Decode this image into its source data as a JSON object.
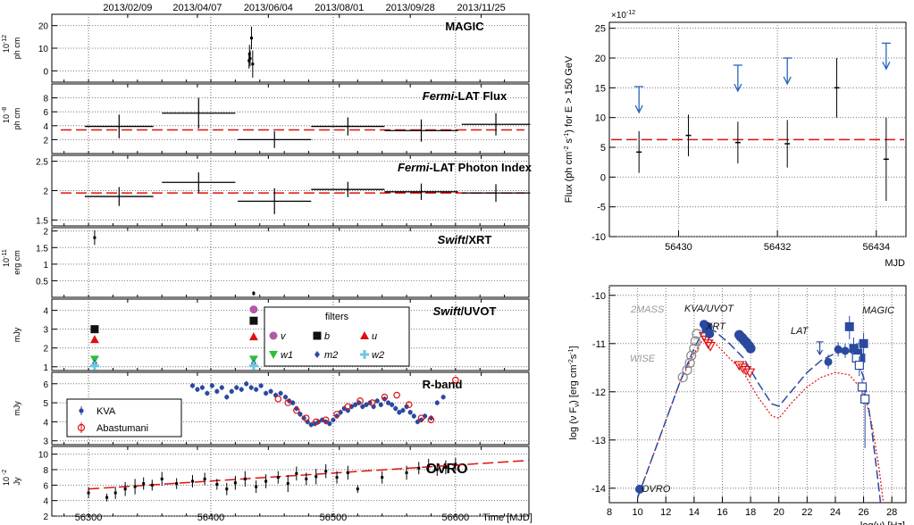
{
  "chart_data": [
    {
      "type": "multi-panel light curve",
      "top_dates": [
        "2013/02/09",
        "2013/04/07",
        "2013/06/04",
        "2013/08/01",
        "2013/09/28",
        "2013/11/25"
      ],
      "top_date_mjd": [
        56332,
        56389,
        56447,
        56505,
        56563,
        56621
      ],
      "x_range": [
        56270,
        56660
      ],
      "x_ticks": [
        56300,
        56400,
        56500,
        56600
      ],
      "xlabel": "Time [MJD]",
      "panels": [
        {
          "id": "magic",
          "title": "MAGIC",
          "ylabel_exp": "10",
          "ylabel_pow": "-12",
          "ylabel": "ph cm",
          "ylim": [
            -5,
            25
          ],
          "ticks": [
            0,
            10,
            20
          ],
          "tick_labels": [
            "0",
            "10",
            "20"
          ],
          "series": [
            {
              "type": "points",
              "color": "#000000",
              "x": [
                56431.2,
                56431.6,
                56432.1,
                56433.2,
                56434.2
              ],
              "y": [
                4.5,
                7.5,
                5.5,
                14.5,
                3.0
              ],
              "err": [
                3.5,
                4,
                3.5,
                5,
                6
              ]
            }
          ]
        },
        {
          "id": "lat_flux",
          "title": "-LAT Flux",
          "title_ital": "Fermi",
          "ylabel_exp": "10",
          "ylabel_pow": "-8",
          "ylabel": "ph cm",
          "ylim": [
            0,
            10
          ],
          "ticks": [
            2,
            4,
            6,
            8
          ],
          "tick_labels": [
            "2",
            "4",
            "6",
            "8"
          ],
          "hline": 3.4,
          "series": [
            {
              "type": "bins",
              "color": "#000000",
              "x": [
                56325,
                56390,
                56452,
                56512,
                56572,
                56633
              ],
              "xerr": [
                28,
                30,
                30,
                30,
                30,
                28
              ],
              "y": [
                3.9,
                5.8,
                2.0,
                3.9,
                3.3,
                4.2
              ],
              "err": [
                1.7,
                2.2,
                1.2,
                1.3,
                1.6,
                1.6
              ]
            }
          ]
        },
        {
          "id": "lat_index",
          "title": "-LAT Photon Index",
          "title_ital": "Fermi",
          "ylabel": "",
          "ylim": [
            1.4,
            2.6
          ],
          "ticks": [
            1.5,
            2,
            2.5
          ],
          "tick_labels": [
            "1.5",
            "2",
            "2.5"
          ],
          "hline": 1.96,
          "series": [
            {
              "type": "bins",
              "color": "#000000",
              "x": [
                56325,
                56390,
                56452,
                56512,
                56572,
                56633
              ],
              "xerr": [
                28,
                30,
                30,
                30,
                30,
                28
              ],
              "y": [
                1.9,
                2.14,
                1.82,
                2.02,
                1.98,
                1.96
              ],
              "err": [
                0.16,
                0.17,
                0.22,
                0.13,
                0.14,
                0.15
              ]
            }
          ]
        },
        {
          "id": "xrt",
          "title": "/XRT",
          "title_ital": "Swift",
          "ylabel_exp": "10",
          "ylabel_pow": "-11",
          "ylabel": "erg cm",
          "ylim": [
            0,
            2.1
          ],
          "ticks": [
            0.5,
            1,
            1.5,
            2
          ],
          "tick_labels": [
            "0.5",
            "1",
            "1.5",
            "2"
          ],
          "series": [
            {
              "type": "points",
              "color": "#000000",
              "x": [
                56305,
                56435
              ],
              "y": [
                1.8,
                0.12
              ],
              "err": [
                0.22,
                0.07
              ]
            }
          ]
        },
        {
          "id": "uvot",
          "title": "/UVOT",
          "title_ital": "Swift",
          "ylabel": "mJy",
          "ylim": [
            0.8,
            4.6
          ],
          "ticks": [
            1,
            2,
            3,
            4
          ],
          "tick_labels": [
            "1",
            "2",
            "3",
            "4"
          ],
          "series": [
            {
              "name": "v",
              "marker": "circle",
              "color": "#b05aa8",
              "x": [
                56435
              ],
              "y": [
                4.05
              ]
            },
            {
              "name": "b",
              "marker": "square",
              "color": "#111111",
              "x": [
                56305,
                56435
              ],
              "y": [
                3.0,
                3.45
              ]
            },
            {
              "name": "u",
              "marker": "triangle-up",
              "color": "#e01010",
              "x": [
                56305,
                56435
              ],
              "y": [
                2.45,
                2.6
              ]
            },
            {
              "name": "w1",
              "marker": "triangle-down",
              "color": "#2bbf3a",
              "x": [
                56305,
                56435
              ],
              "y": [
                1.4,
                1.4
              ]
            },
            {
              "name": "m2",
              "marker": "diamond",
              "color": "#2a4aa0",
              "x": [
                56305,
                56435
              ],
              "y": [
                1.2,
                1.2
              ]
            },
            {
              "name": "w2",
              "marker": "cross",
              "color": "#6cc7df",
              "x": [
                56305,
                56435
              ],
              "y": [
                1.05,
                1.05
              ]
            }
          ],
          "legend_title": "filters"
        },
        {
          "id": "rband",
          "title": "R-band",
          "ylabel": "mJy",
          "ylim": [
            2.8,
            6.6
          ],
          "ticks": [
            3,
            4,
            5,
            6
          ],
          "tick_labels": [
            "3",
            "4",
            "5",
            "6"
          ],
          "series": [
            {
              "name": "KVA",
              "marker": "point",
              "color": "#2a4aa0",
              "x": [
                56385,
                56389,
                56393,
                56397,
                56401,
                56405,
                56409,
                56413,
                56417,
                56421,
                56425,
                56429,
                56433,
                56437,
                56441,
                56445,
                56449,
                56453,
                56457,
                56461,
                56464,
                56467,
                56470,
                56473,
                56476,
                56479,
                56482,
                56485,
                56488,
                56491,
                56494,
                56497,
                56500,
                56503,
                56506,
                56509,
                56512,
                56515,
                56518,
                56521,
                56524,
                56527,
                56530,
                56533,
                56536,
                56539,
                56542,
                56545,
                56548,
                56551,
                56554,
                56557,
                56560,
                56563,
                56566,
                56569,
                56572,
                56575,
                56580,
                56585,
                56590
              ],
              "y": [
                5.9,
                5.7,
                5.8,
                5.5,
                5.9,
                5.6,
                5.8,
                5.3,
                5.6,
                5.8,
                5.7,
                6.0,
                5.8,
                5.7,
                5.9,
                5.5,
                5.6,
                5.4,
                5.5,
                5.3,
                5.1,
                5.0,
                4.7,
                4.4,
                4.2,
                4.0,
                3.85,
                3.9,
                4.0,
                4.1,
                4.0,
                3.9,
                4.1,
                4.3,
                4.5,
                4.7,
                4.6,
                4.8,
                4.9,
                5.0,
                4.8,
                4.9,
                5.0,
                4.8,
                5.1,
                4.9,
                5.2,
                5.0,
                4.9,
                4.7,
                4.5,
                4.6,
                4.8,
                4.5,
                4.3,
                4.0,
                4.1,
                4.3,
                4.2,
                5.0,
                5.3
              ]
            },
            {
              "name": "Abastumani",
              "marker": "open-circle",
              "color": "#e01010",
              "x": [
                56455,
                56463,
                56470,
                56478,
                56486,
                56494,
                56503,
                56512,
                56522,
                56532,
                56542,
                56552,
                56562,
                56572,
                56580,
                56600
              ],
              "y": [
                5.2,
                5.0,
                4.6,
                4.2,
                4.0,
                4.1,
                4.4,
                4.8,
                5.1,
                5.0,
                5.3,
                5.4,
                4.9,
                4.2,
                4.1,
                6.2
              ]
            }
          ]
        },
        {
          "id": "ovro",
          "title": "OVRO",
          "ylabel_exp": "10",
          "ylabel_pow": "-2",
          "ylabel": "Jy",
          "ylim": [
            2,
            11
          ],
          "ticks": [
            2,
            4,
            6,
            8,
            10
          ],
          "tick_labels": [
            "2",
            "4",
            "6",
            "8",
            "10"
          ],
          "trend": [
            [
              56300,
              5.5
            ],
            [
              56660,
              9.2
            ]
          ],
          "series": [
            {
              "type": "points",
              "color": "#000000",
              "x": [
                56300,
                56315,
                56322,
                56330,
                56338,
                56345,
                56352,
                56360,
                56372,
                56385,
                56395,
                56405,
                56413,
                56420,
                56428,
                56437,
                56445,
                56455,
                56463,
                56470,
                56478,
                56486,
                56494,
                56503,
                56512,
                56520,
                56540,
                56560,
                56570,
                56578,
                56585,
                56592,
                56600
              ],
              "y": [
                5.0,
                4.4,
                5.0,
                5.5,
                5.8,
                6.2,
                6.0,
                6.8,
                6.2,
                6.5,
                6.8,
                6.1,
                5.5,
                6.3,
                6.8,
                5.8,
                6.5,
                7.0,
                6.2,
                7.5,
                6.8,
                7.1,
                7.8,
                7.0,
                7.6,
                5.5,
                7.0,
                7.6,
                8.2,
                8.5,
                8.0,
                8.3,
                8.7
              ],
              "err": [
                0.7,
                0.5,
                0.8,
                0.9,
                1.0,
                0.8,
                0.7,
                0.9,
                0.7,
                0.8,
                0.8,
                0.7,
                0.8,
                0.9,
                1.0,
                0.8,
                0.9,
                0.8,
                1.1,
                0.9,
                0.8,
                1.0,
                0.9,
                0.8,
                0.9,
                0.5,
                0.8,
                0.9,
                0.8,
                0.9,
                0.8,
                0.9,
                0.8
              ]
            }
          ]
        }
      ]
    },
    {
      "type": "scatter",
      "ylabel": "Flux (ph cm",
      "ylabel_tail": ") for E > 150 GeV",
      "y_exp": "×10",
      "y_exp_pow": "-12",
      "xlabel": "MJD",
      "xlim": [
        56428.6,
        56434.6
      ],
      "ylim": [
        -10,
        26
      ],
      "x_ticks": [
        56430,
        56432,
        56434
      ],
      "y_ticks": [
        -10,
        -5,
        0,
        5,
        10,
        15,
        20,
        25
      ],
      "hline": 6.3,
      "points": {
        "x": [
          56429.2,
          56430.2,
          56431.2,
          56432.2,
          56433.2,
          56434.2
        ],
        "y": [
          4.2,
          7.0,
          5.8,
          5.6,
          15.0,
          3.0
        ],
        "err": [
          3.5,
          3.5,
          3.5,
          4.0,
          5.0,
          7.0
        ]
      },
      "upper_limits": {
        "x": [
          56429.2,
          56431.2,
          56432.2,
          56434.2
        ],
        "y": [
          15.2,
          18.8,
          20.0,
          22.5
        ],
        "color": "#2a64b8"
      }
    },
    {
      "type": "sed",
      "xlabel": "log(ν) [Hz]",
      "ylabel": "log (ν F",
      "ylabel_tail": ") [erg cm",
      "ylabel_end": "s",
      "xlim": [
        8,
        29
      ],
      "ylim": [
        -14.3,
        -9.8
      ],
      "x_ticks": [
        8,
        10,
        12,
        14,
        16,
        18,
        20,
        22,
        24,
        26,
        28
      ],
      "y_ticks": [
        -14,
        -13,
        -12,
        -11,
        -10
      ],
      "labels": [
        "2MASS",
        "WISE",
        "KVA/UVOT",
        "XRT",
        "LAT",
        "MAGIC",
        "OVRO"
      ],
      "ovro": {
        "x": [
          10.15
        ],
        "y": [
          -14.02
        ]
      },
      "opt_uv": {
        "x": [
          14.7,
          14.85,
          15.0,
          15.1
        ],
        "y": [
          -10.6,
          -10.7,
          -10.65,
          -10.8
        ]
      },
      "xrt": {
        "x": [
          17.2,
          17.3,
          17.4,
          17.5,
          17.6,
          17.7,
          17.8,
          17.9,
          18.0
        ],
        "y": [
          -10.82,
          -10.86,
          -10.88,
          -10.92,
          -10.95,
          -10.98,
          -11.02,
          -11.05,
          -11.1
        ]
      },
      "ir": {
        "x": [
          13.2,
          13.5,
          13.7,
          13.8,
          14.0,
          14.1,
          14.2
        ],
        "y": [
          -11.7,
          -11.55,
          -11.4,
          -11.25,
          -11.1,
          -10.95,
          -10.8
        ]
      },
      "lat": {
        "x": [
          23.5,
          24.2,
          24.7
        ],
        "y": [
          -11.38,
          -11.12,
          -11.15
        ]
      },
      "lat_ul": {
        "x": [
          22.9
        ],
        "y": [
          -11.15
        ]
      },
      "magic": {
        "x": [
          25.0,
          25.3,
          25.6,
          25.8,
          26.0
        ],
        "y": [
          -10.65,
          -11.1,
          -11.2,
          -11.3,
          -11.0
        ]
      },
      "magic_open": {
        "x": [
          25.5,
          25.7,
          25.9,
          26.1
        ],
        "y": [
          -11.3,
          -11.45,
          -11.9,
          -12.15
        ]
      },
      "uv_low": {
        "x": [
          14.7,
          14.85,
          15.0,
          15.15,
          17.2,
          17.45,
          17.7,
          17.95
        ],
        "y": [
          -10.85,
          -10.92,
          -11.0,
          -11.05,
          -11.45,
          -11.5,
          -11.55,
          -11.6
        ]
      },
      "model_high": {
        "x": [
          10,
          11,
          12,
          13,
          14,
          14.8,
          15.5,
          16.5,
          17.5,
          18.5,
          19.5,
          20,
          21,
          22,
          23,
          24,
          25,
          25.5,
          26,
          26.5,
          27,
          27.2
        ],
        "y": [
          -14.2,
          -13.4,
          -12.6,
          -11.8,
          -11.1,
          -10.65,
          -10.75,
          -11.0,
          -11.3,
          -11.8,
          -12.25,
          -12.3,
          -11.95,
          -11.6,
          -11.35,
          -11.2,
          -11.15,
          -11.3,
          -11.7,
          -12.6,
          -13.8,
          -14.3
        ]
      },
      "model_low": {
        "x": [
          10,
          11,
          12,
          13,
          14,
          14.8,
          15.5,
          16.5,
          17.5,
          18.5,
          19.5,
          20,
          21,
          22,
          23,
          24,
          25,
          26,
          26.6,
          27.1,
          27.4
        ],
        "y": [
          -14.2,
          -13.4,
          -12.6,
          -11.8,
          -11.2,
          -10.85,
          -11.0,
          -11.3,
          -11.6,
          -12.1,
          -12.5,
          -12.55,
          -12.2,
          -11.9,
          -11.7,
          -11.6,
          -11.65,
          -12.0,
          -12.7,
          -13.6,
          -14.3
        ]
      }
    }
  ]
}
